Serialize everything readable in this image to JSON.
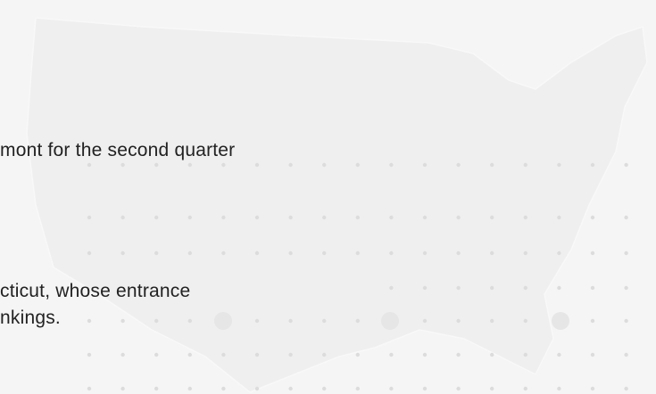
{
  "text_lines": [
    "mont for the second quarter",
    "cticut, whose entrance",
    "nkings."
  ]
}
